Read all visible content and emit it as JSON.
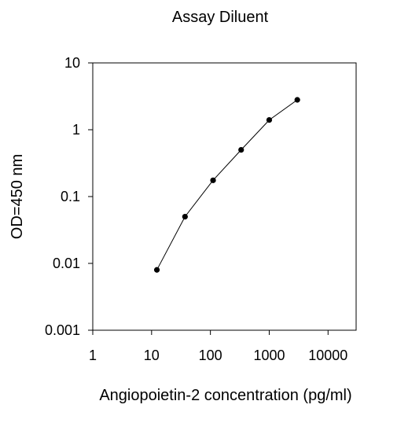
{
  "chart_data": {
    "type": "scatter",
    "title": "Assay Diluent",
    "xlabel": "Angiopoietin-2 concentration (pg/ml)",
    "ylabel": "OD=450 nm",
    "xscale": "log",
    "yscale": "log",
    "xlim": [
      1,
      30000
    ],
    "ylim": [
      0.001,
      10
    ],
    "xticks": [
      1,
      10,
      100,
      1000,
      10000
    ],
    "xtick_labels": [
      "1",
      "10",
      "100",
      "1000",
      "10000"
    ],
    "yticks": [
      0.001,
      0.01,
      0.1,
      1,
      10
    ],
    "ytick_labels": [
      "0.001",
      "0.01",
      "0.1",
      "1",
      "10"
    ],
    "grid": false,
    "legend": "none",
    "series": [
      {
        "x": [
          12.3,
          37,
          111,
          333,
          1000,
          3000
        ],
        "y": [
          0.008,
          0.05,
          0.175,
          0.5,
          1.4,
          2.8
        ],
        "color": "#000000",
        "line": true,
        "markers": true
      }
    ]
  }
}
